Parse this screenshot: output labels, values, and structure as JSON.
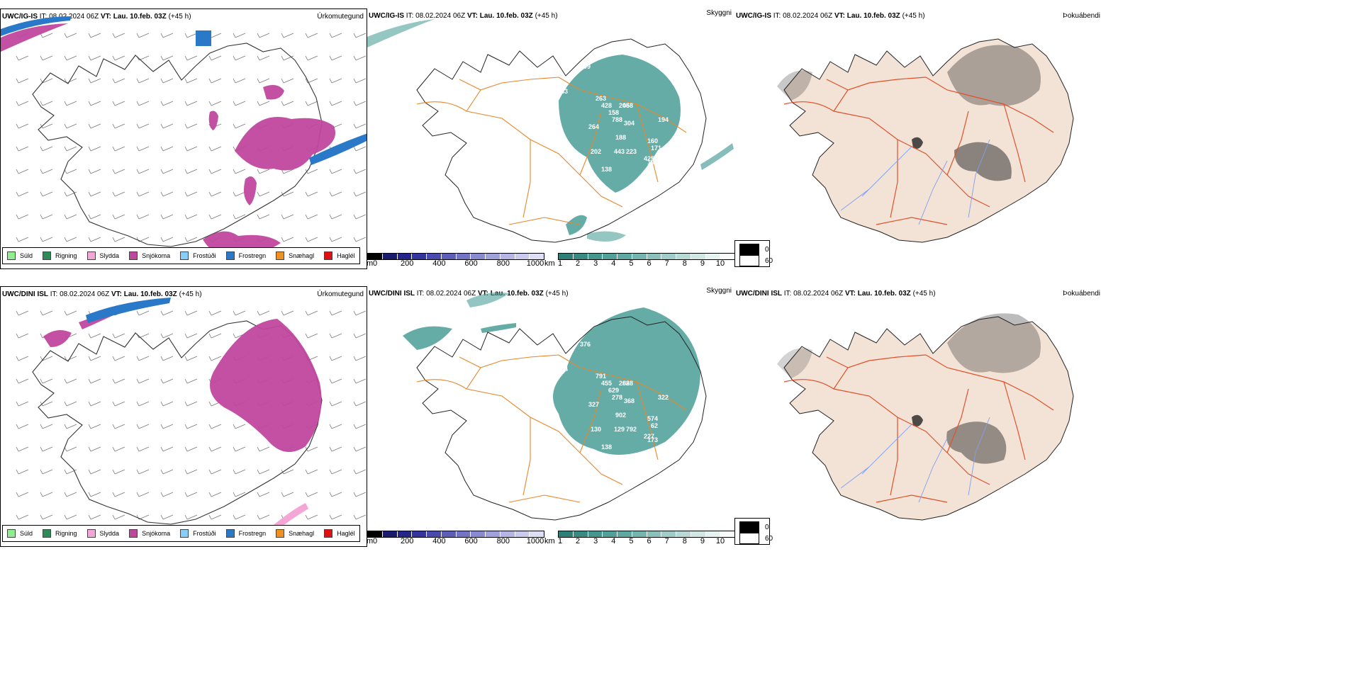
{
  "colors": {
    "precip": {
      "Súld": "#90ee90",
      "Rigning": "#2e8b57",
      "Slydda": "#f4a6d7",
      "Snjókoma": "#c0479e",
      "Frostúði": "#87cefa",
      "Frostregn": "#2a78c8",
      "Snæhagl": "#f0901e",
      "Haglél": "#e01010"
    },
    "cloud": "#4a9e98",
    "land_fog": "#f3e3d6",
    "roads": "#e8872a",
    "roads_fog": "#e0502a",
    "rivers": "#7f9ff0"
  },
  "rows": [
    {
      "model": "UWC/IG-IS",
      "it_label": "IT:",
      "it_value": "08.02.2024 06Z",
      "vt_label": "VT:",
      "vt_value": "Lau. 10.feb. 03Z",
      "lead": "(+45 h)",
      "panel_names": [
        "Úrkomutegund",
        "Skyggni",
        "Þokuábendi"
      ],
      "precip_legend": [
        "Súld",
        "Rigning",
        "Slydda",
        "Snjókoma",
        "Frostúði",
        "Frostregn",
        "Snæhagl",
        "Haglél"
      ],
      "ceiling_labels": [
        "263",
        "409",
        "263",
        "428",
        "264",
        "158",
        "205",
        "788",
        "304",
        "468",
        "188",
        "443",
        "223",
        "425",
        "197",
        "138",
        "202",
        "194",
        "160",
        "171"
      ],
      "fog_legend": [
        "0",
        "60"
      ]
    },
    {
      "model": "UWC/DINI ISL",
      "it_label": "IT:",
      "it_value": "08.02.2024 06Z",
      "vt_label": "VT:",
      "vt_value": "Lau. 10.feb. 03Z",
      "lead": "(+45 h)",
      "panel_names": [
        "Úrkomutegund",
        "Skyggni",
        "Þokuábendi"
      ],
      "precip_legend": [
        "Súld",
        "Rigning",
        "Slydda",
        "Snjókoma",
        "Frostúði",
        "Frostregn",
        "Snæhagl",
        "Haglél"
      ],
      "ceiling_labels": [
        "154",
        "376",
        "791",
        "455",
        "327",
        "629",
        "288",
        "278",
        "368",
        "628",
        "902",
        "129",
        "792",
        "227",
        "173",
        "138",
        "130",
        "322",
        "574",
        "62"
      ],
      "fog_legend": [
        "0",
        "60"
      ]
    }
  ],
  "colorbars": {
    "ceiling": {
      "unit": "m",
      "ticks": [
        "0",
        "200",
        "400",
        "600",
        "800",
        "1000"
      ],
      "colors": [
        "#000000",
        "#1a1a6e",
        "#24248a",
        "#34349e",
        "#4a4aae",
        "#5e5eb8",
        "#7474c4",
        "#8a8ad0",
        "#a0a0da",
        "#b6b6e4",
        "#cacaee",
        "#dedef6"
      ]
    },
    "visibility": {
      "unit": "km",
      "ticks": [
        "1",
        "2",
        "3",
        "4",
        "5",
        "6",
        "7",
        "8",
        "9",
        "10"
      ],
      "colors": [
        "#2f7f79",
        "#3a8a84",
        "#46958f",
        "#52a09a",
        "#5fa9a3",
        "#74b5af",
        "#8ac1bc",
        "#a0cdc9",
        "#b8dad6",
        "#d0e7e4",
        "#e6f3f1",
        "#f8fcfb"
      ]
    }
  }
}
